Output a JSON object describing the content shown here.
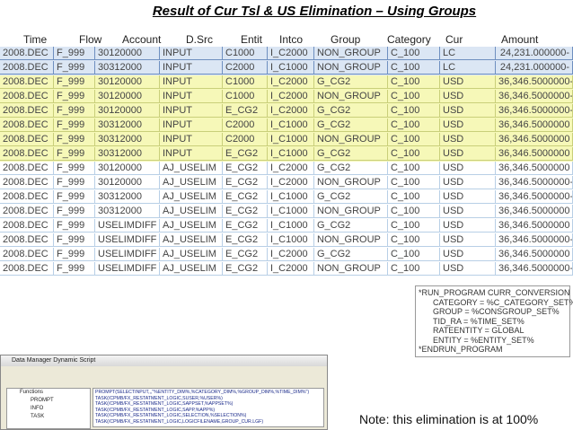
{
  "title": "Result of  Cur Tsl & US Elimination – Using Groups",
  "table": {
    "headers": [
      "Time",
      "Flow",
      "Account",
      "D.Src",
      "Entit",
      "Intco",
      "Group",
      "Category",
      "Cur",
      "Amount"
    ],
    "rows": [
      [
        "2008.DEC",
        "F_999",
        "30120000",
        "INPUT",
        "C1000",
        "I_C2000",
        "NON_GROUP",
        "C_100",
        "LC",
        "24,231.000000-"
      ],
      [
        "2008.DEC",
        "F_999",
        "30312000",
        "INPUT",
        "C2000",
        "I_C1000",
        "NON_GROUP",
        "C_100",
        "LC",
        "24,231.000000-"
      ],
      [
        "2008.DEC",
        "F_999",
        "30120000",
        "INPUT",
        "C1000",
        "I_C2000",
        "G_CG2",
        "C_100",
        "USD",
        "36,346.5000000-"
      ],
      [
        "2008.DEC",
        "F_999",
        "30120000",
        "INPUT",
        "C1000",
        "I_C2000",
        "NON_GROUP",
        "C_100",
        "USD",
        "36,346.5000000-"
      ],
      [
        "2008.DEC",
        "F_999",
        "30120000",
        "INPUT",
        "E_CG2",
        "I_C2000",
        "G_CG2",
        "C_100",
        "USD",
        "36,346.5000000-"
      ],
      [
        "2008.DEC",
        "F_999",
        "30312000",
        "INPUT",
        "C2000",
        "I_C1000",
        "G_CG2",
        "C_100",
        "USD",
        "36,346.5000000"
      ],
      [
        "2008.DEC",
        "F_999",
        "30312000",
        "INPUT",
        "C2000",
        "I_C1000",
        "NON_GROUP",
        "C_100",
        "USD",
        "36,346.5000000"
      ],
      [
        "2008.DEC",
        "F_999",
        "30312000",
        "INPUT",
        "E_CG2",
        "I_C1000",
        "G_CG2",
        "C_100",
        "USD",
        "36,346.5000000"
      ],
      [
        "2008.DEC",
        "F_999",
        "30120000",
        "AJ_USELIM",
        "E_CG2",
        "I_C2000",
        "G_CG2",
        "C_100",
        "USD",
        "36,346.5000000"
      ],
      [
        "2008.DEC",
        "F_999",
        "30120000",
        "AJ_USELIM",
        "E_CG2",
        "I_C2000",
        "NON_GROUP",
        "C_100",
        "USD",
        "36,346.5000000-"
      ],
      [
        "2008.DEC",
        "F_999",
        "30312000",
        "AJ_USELIM",
        "E_CG2",
        "I_C1000",
        "G_CG2",
        "C_100",
        "USD",
        "36,346.5000000-"
      ],
      [
        "2008.DEC",
        "F_999",
        "30312000",
        "AJ_USELIM",
        "E_CG2",
        "I_C1000",
        "NON_GROUP",
        "C_100",
        "USD",
        "36,346.5000000"
      ],
      [
        "2008.DEC",
        "F_999",
        "USELIMDIFF",
        "AJ_USELIM",
        "E_CG2",
        "I_C1000",
        "G_CG2",
        "C_100",
        "USD",
        "36,346.5000000"
      ],
      [
        "2008.DEC",
        "F_999",
        "USELIMDIFF",
        "AJ_USELIM",
        "E_CG2",
        "I_C1000",
        "NON_GROUP",
        "C_100",
        "USD",
        "36,346.5000000-"
      ],
      [
        "2008.DEC",
        "F_999",
        "USELIMDIFF",
        "AJ_USELIM",
        "E_CG2",
        "I_C2000",
        "G_CG2",
        "C_100",
        "USD",
        "36,346.5000000"
      ],
      [
        "2008.DEC",
        "F_999",
        "USELIMDIFF",
        "AJ_USELIM",
        "E_CG2",
        "I_C2000",
        "NON_GROUP",
        "C_100",
        "USD",
        "36,346.5000000-"
      ]
    ]
  },
  "script_box": [
    "*RUN_PROGRAM CURR_CONVERSION",
    "CATEGORY = %C_CATEGORY_SET%",
    "GROUP = %CONSGROUP_SET%",
    "TID_RA = %TIME_SET%",
    "RATEENTITY = GLOBAL",
    "ENTITY = %ENTITY_SET%",
    "*ENDRUN_PROGRAM"
  ],
  "dialog": {
    "title": "Data Manager Dynamic Script",
    "tree": [
      "Functions",
      "PROMPT",
      "INFO",
      "TASK"
    ],
    "script": [
      "PROMPT(SELECTINPUT,,,\"%ENTITY_DIM%,%CATEGORY_DIM%,%GROUP_DIM%,%TIME_DIM%\")",
      "TASK(/CPMB/FX_RESTATMENT_LOGIC,SUSER,%USER%)",
      "TASK(/CPMB/FX_RESTATMENT_LOGIC,SAPPSET,%APPSET%)",
      "TASK(/CPMB/FX_RESTATMENT_LOGIC,SAPP,%APP%)",
      "TASK(/CPMB/FX_RESTATMENT_LOGIC,SELECTION,%SELECTION%)",
      "TASK(/CPMB/FX_RESTATMENT_LOGIC,LOGICFILENAME,GROUP_CUR.LGF)"
    ]
  },
  "note": "Note:  this elimination is at 100%"
}
